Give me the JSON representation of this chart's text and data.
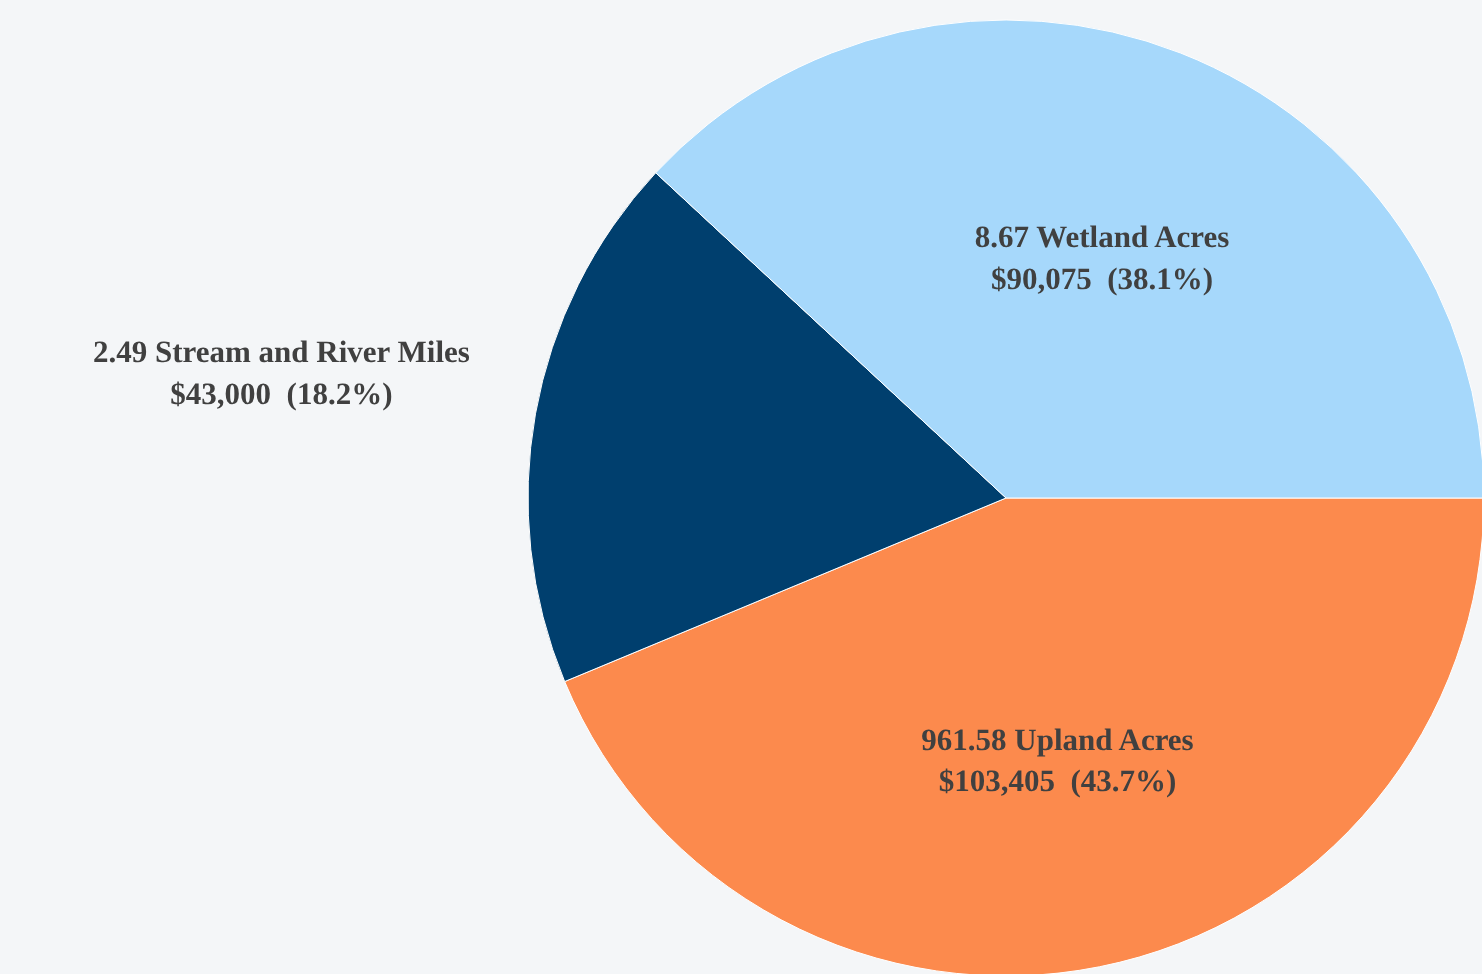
{
  "chart_data": {
    "type": "pie",
    "categories": [
      "961.58 Upland Acres",
      "2.49 Stream and River Miles",
      "8.67 Wetland Acres"
    ],
    "values": [
      103405,
      43000,
      90075
    ],
    "value_labels": [
      "$103,405  (43.7%)",
      "$43,000  (18.2%)",
      "$90,075  (38.1%)"
    ],
    "colors": [
      "#fc8a4d",
      "#003f6e",
      "#a6d8fb"
    ]
  }
}
